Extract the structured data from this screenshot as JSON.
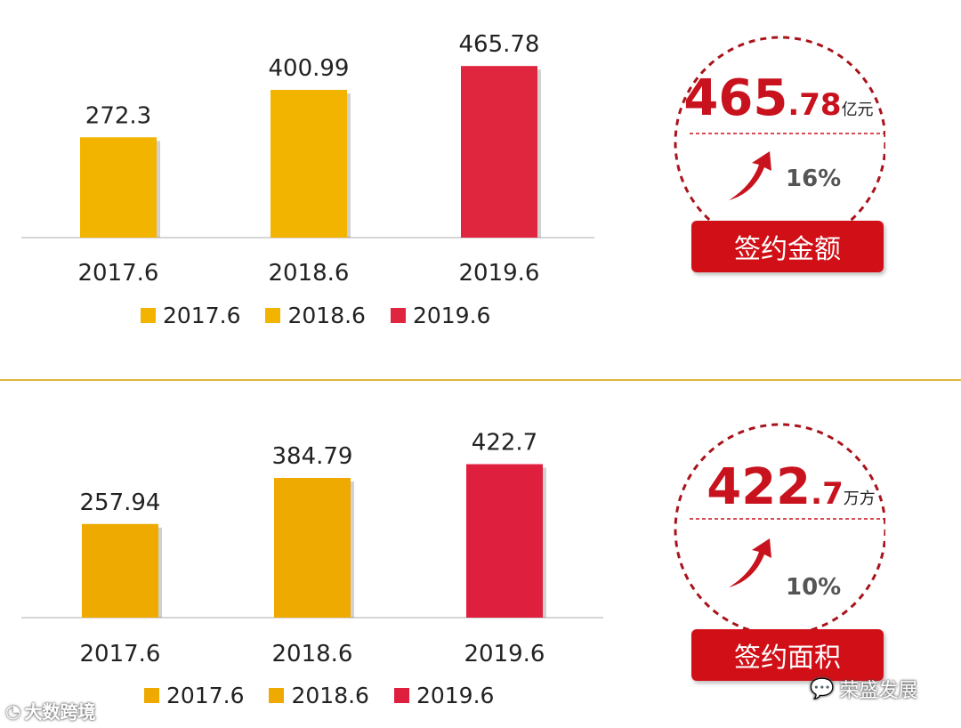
{
  "colors": {
    "bar_yellow": "#f3b400",
    "bar_red": "#e0263f",
    "accent_red": "#c8121d",
    "divider": "#e0b43c"
  },
  "chart_data": [
    {
      "type": "bar",
      "categories": [
        "2017.6",
        "2018.6",
        "2019.6"
      ],
      "values": [
        272.3,
        400.99,
        465.78
      ],
      "value_labels": [
        "272.3",
        "400.99",
        "465.78"
      ],
      "bar_colors": [
        "#f3b400",
        "#f3b400",
        "#e0263f"
      ],
      "legend": [
        "2017.6",
        "2018.6",
        "2019.6"
      ],
      "legend_colors": [
        "#f3b400",
        "#f3b400",
        "#e0263f"
      ],
      "ylim": [
        0,
        500
      ],
      "grid": false,
      "legend_position": "bottom",
      "highlight": {
        "value_int": "465",
        "value_dec": ".78",
        "unit": "亿元",
        "growth": "16%",
        "label": "签约金额"
      }
    },
    {
      "type": "bar",
      "categories": [
        "2017.6",
        "2018.6",
        "2019.6"
      ],
      "values": [
        257.94,
        384.79,
        422.7
      ],
      "value_labels": [
        "257.94",
        "384.79",
        "422.7"
      ],
      "bar_colors": [
        "#eeaa00",
        "#eeaa00",
        "#df1f3e"
      ],
      "legend": [
        "2017.6",
        "2018.6",
        "2019.6"
      ],
      "legend_colors": [
        "#eeaa00",
        "#eeaa00",
        "#df1f3e"
      ],
      "ylim": [
        0,
        500
      ],
      "grid": false,
      "legend_position": "bottom",
      "highlight": {
        "value_int": "422",
        "value_dec": ".7",
        "unit": "万方",
        "growth": "10%",
        "label": "签约面积"
      }
    }
  ],
  "watermarks": {
    "left": "大数跨境",
    "right": "荣盛发展"
  }
}
